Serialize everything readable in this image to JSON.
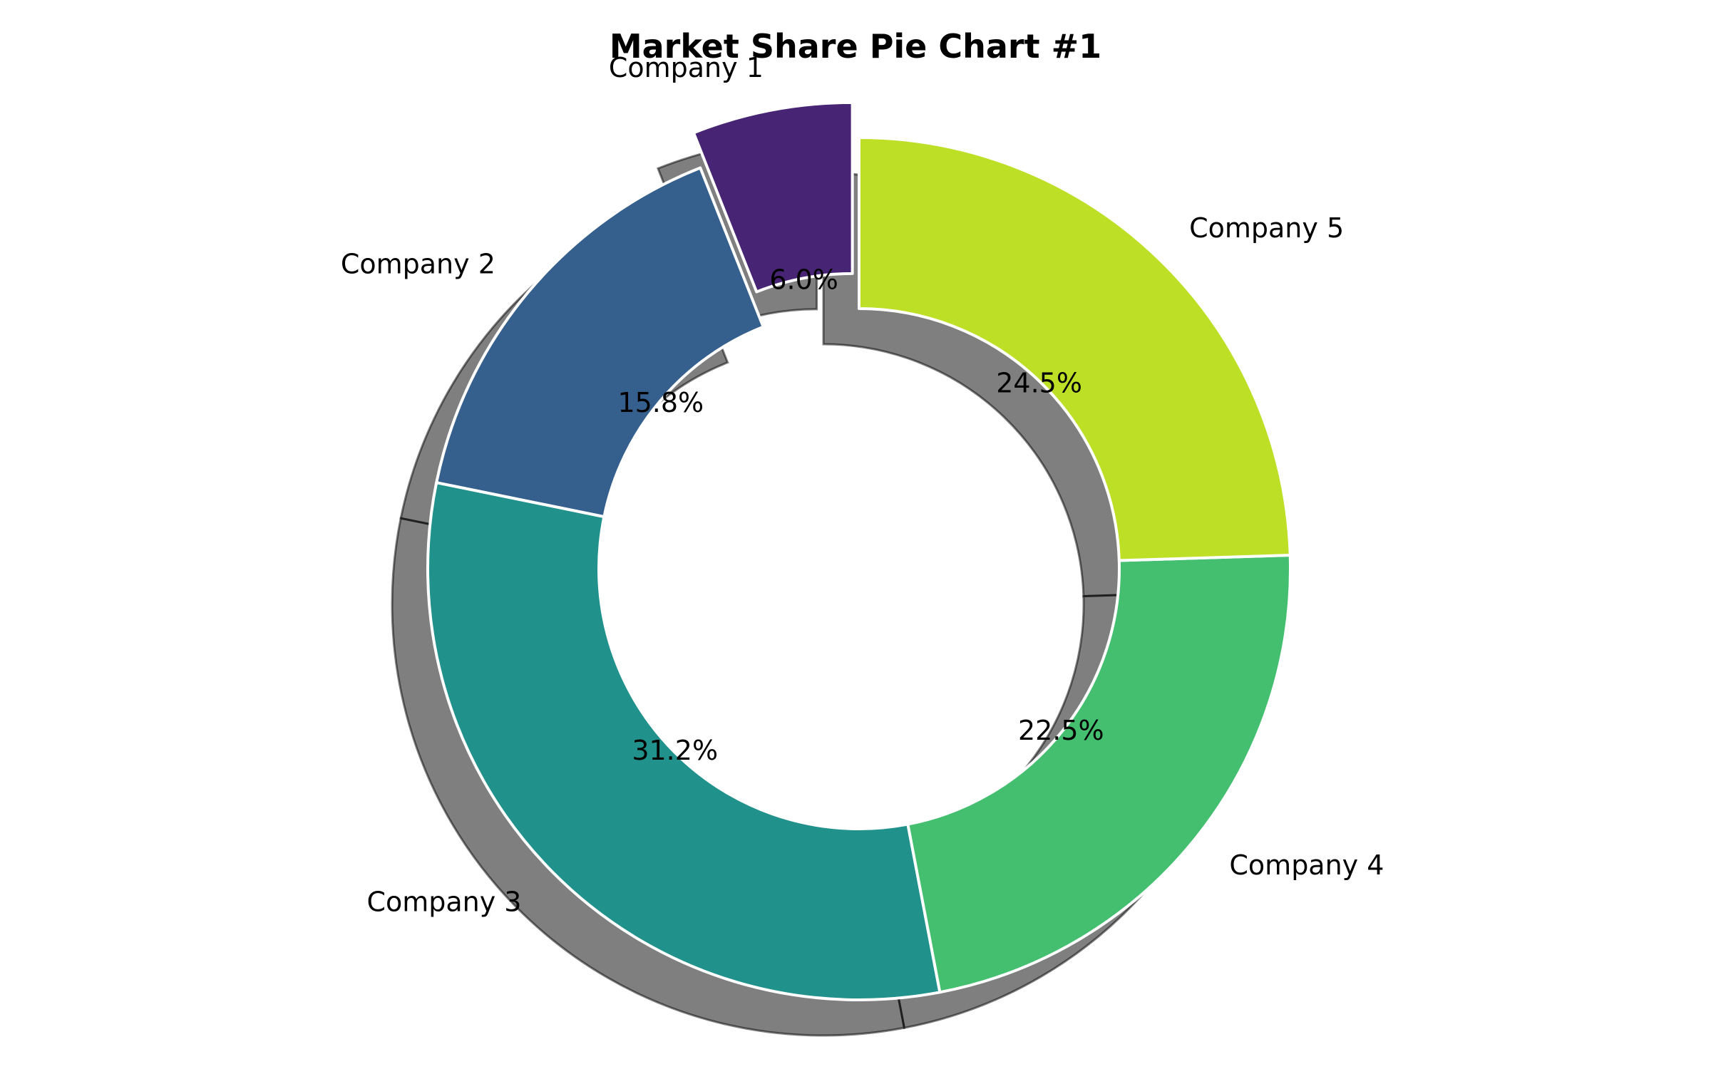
{
  "chart_data": {
    "type": "pie",
    "style": "donut",
    "title": "Market Share Pie Chart #1",
    "categories": [
      "Company 1",
      "Company 2",
      "Company 3",
      "Company 4",
      "Company 5"
    ],
    "values": [
      6.0,
      15.8,
      31.2,
      22.5,
      24.5
    ],
    "percent_labels": [
      "6.0%",
      "15.8%",
      "31.2%",
      "22.5%",
      "24.5%"
    ],
    "colors": [
      "#482474",
      "#355f8d",
      "#21918c",
      "#44bf70",
      "#bddf26"
    ],
    "exploded": [
      "Company 1"
    ],
    "shadow": true,
    "start_angle_deg": 90,
    "direction": "counterclockwise"
  }
}
